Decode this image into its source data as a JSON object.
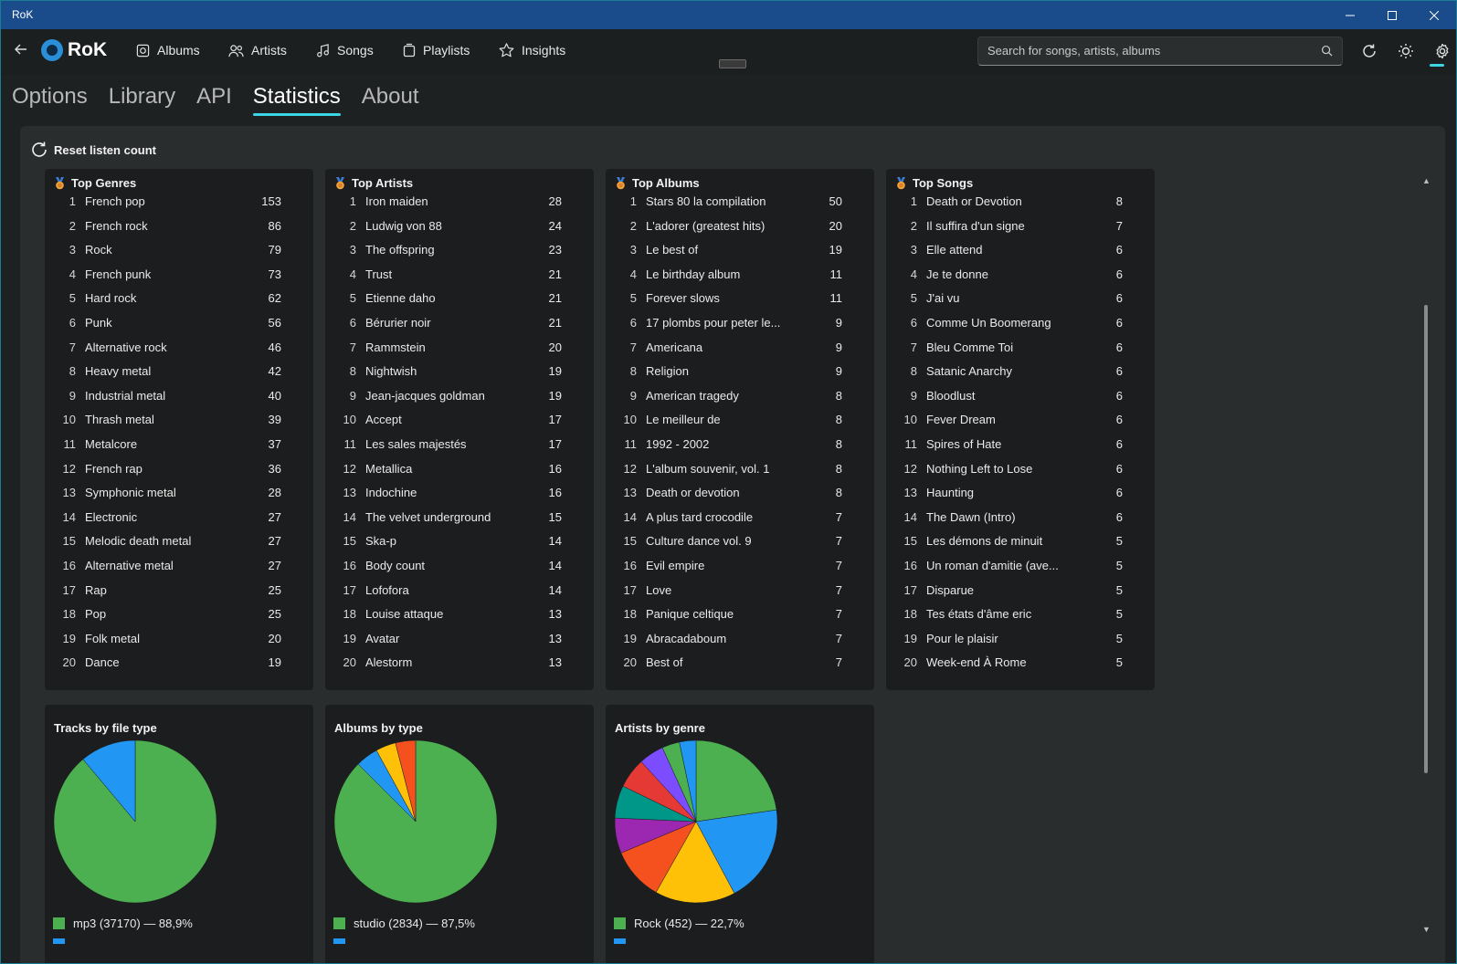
{
  "window": {
    "title": "RoK",
    "controls": [
      "minimize-icon",
      "maximize-icon",
      "close-icon"
    ]
  },
  "nav": {
    "logo_text": "RoK",
    "items": [
      {
        "label": "Albums",
        "icon": "album-icon"
      },
      {
        "label": "Artists",
        "icon": "artists-icon"
      },
      {
        "label": "Songs",
        "icon": "music-note-icon"
      },
      {
        "label": "Playlists",
        "icon": "playlist-icon"
      },
      {
        "label": "Insights",
        "icon": "star-icon"
      }
    ],
    "search_placeholder": "Search for songs, artists, albums"
  },
  "tabs": [
    {
      "label": "Options",
      "active": false
    },
    {
      "label": "Library",
      "active": false
    },
    {
      "label": "API",
      "active": false
    },
    {
      "label": "Statistics",
      "active": true
    },
    {
      "label": "About",
      "active": false
    }
  ],
  "reset_label": "Reset listen count",
  "colors": {
    "accent": "#3ad6e6",
    "titlebar": "#1a4c8c",
    "card": "#1b1d1e",
    "panel": "#2a2d2e"
  },
  "top_lists": [
    {
      "title": "Top Genres",
      "items": [
        {
          "rank": "1",
          "name": "French pop",
          "count": "153"
        },
        {
          "rank": "2",
          "name": "French rock",
          "count": "86"
        },
        {
          "rank": "3",
          "name": "Rock",
          "count": "79"
        },
        {
          "rank": "4",
          "name": "French punk",
          "count": "73"
        },
        {
          "rank": "5",
          "name": "Hard rock",
          "count": "62"
        },
        {
          "rank": "6",
          "name": "Punk",
          "count": "56"
        },
        {
          "rank": "7",
          "name": "Alternative rock",
          "count": "46"
        },
        {
          "rank": "8",
          "name": "Heavy metal",
          "count": "42"
        },
        {
          "rank": "9",
          "name": "Industrial metal",
          "count": "40"
        },
        {
          "rank": "10",
          "name": "Thrash metal",
          "count": "39"
        },
        {
          "rank": "11",
          "name": "Metalcore",
          "count": "37"
        },
        {
          "rank": "12",
          "name": "French rap",
          "count": "36"
        },
        {
          "rank": "13",
          "name": "Symphonic metal",
          "count": "28"
        },
        {
          "rank": "14",
          "name": "Electronic",
          "count": "27"
        },
        {
          "rank": "15",
          "name": "Melodic death metal",
          "count": "27"
        },
        {
          "rank": "16",
          "name": "Alternative metal",
          "count": "27"
        },
        {
          "rank": "17",
          "name": "Rap",
          "count": "25"
        },
        {
          "rank": "18",
          "name": "Pop",
          "count": "25"
        },
        {
          "rank": "19",
          "name": "Folk metal",
          "count": "20"
        },
        {
          "rank": "20",
          "name": "Dance",
          "count": "19"
        }
      ]
    },
    {
      "title": "Top Artists",
      "items": [
        {
          "rank": "1",
          "name": "Iron maiden",
          "count": "28"
        },
        {
          "rank": "2",
          "name": "Ludwig von 88",
          "count": "24"
        },
        {
          "rank": "3",
          "name": "The offspring",
          "count": "23"
        },
        {
          "rank": "4",
          "name": "Trust",
          "count": "21"
        },
        {
          "rank": "5",
          "name": "Etienne daho",
          "count": "21"
        },
        {
          "rank": "6",
          "name": "Bérurier noir",
          "count": "21"
        },
        {
          "rank": "7",
          "name": "Rammstein",
          "count": "20"
        },
        {
          "rank": "8",
          "name": "Nightwish",
          "count": "19"
        },
        {
          "rank": "9",
          "name": "Jean-jacques goldman",
          "count": "19"
        },
        {
          "rank": "10",
          "name": "Accept",
          "count": "17"
        },
        {
          "rank": "11",
          "name": "Les sales majestés",
          "count": "17"
        },
        {
          "rank": "12",
          "name": "Metallica",
          "count": "16"
        },
        {
          "rank": "13",
          "name": "Indochine",
          "count": "16"
        },
        {
          "rank": "14",
          "name": "The velvet underground",
          "count": "15"
        },
        {
          "rank": "15",
          "name": "Ska-p",
          "count": "14"
        },
        {
          "rank": "16",
          "name": "Body count",
          "count": "14"
        },
        {
          "rank": "17",
          "name": "Lofofora",
          "count": "14"
        },
        {
          "rank": "18",
          "name": "Louise attaque",
          "count": "13"
        },
        {
          "rank": "19",
          "name": "Avatar",
          "count": "13"
        },
        {
          "rank": "20",
          "name": "Alestorm",
          "count": "13"
        }
      ]
    },
    {
      "title": "Top Albums",
      "items": [
        {
          "rank": "1",
          "name": "Stars 80 la compilation",
          "count": "50"
        },
        {
          "rank": "2",
          "name": "L'adorer (greatest hits)",
          "count": "20"
        },
        {
          "rank": "3",
          "name": "Le best of",
          "count": "19"
        },
        {
          "rank": "4",
          "name": "Le birthday album",
          "count": "11"
        },
        {
          "rank": "5",
          "name": "Forever slows",
          "count": "11"
        },
        {
          "rank": "6",
          "name": "17 plombs pour peter le...",
          "count": "9"
        },
        {
          "rank": "7",
          "name": "Americana",
          "count": "9"
        },
        {
          "rank": "8",
          "name": "Religion",
          "count": "9"
        },
        {
          "rank": "9",
          "name": "American tragedy",
          "count": "8"
        },
        {
          "rank": "10",
          "name": "Le meilleur de",
          "count": "8"
        },
        {
          "rank": "11",
          "name": "1992 - 2002",
          "count": "8"
        },
        {
          "rank": "12",
          "name": "L'album souvenir, vol. 1",
          "count": "8"
        },
        {
          "rank": "13",
          "name": "Death or devotion",
          "count": "8"
        },
        {
          "rank": "14",
          "name": "A plus tard crocodile",
          "count": "7"
        },
        {
          "rank": "15",
          "name": "Culture dance vol. 9",
          "count": "7"
        },
        {
          "rank": "16",
          "name": "Evil empire",
          "count": "7"
        },
        {
          "rank": "17",
          "name": "Love",
          "count": "7"
        },
        {
          "rank": "18",
          "name": "Panique celtique",
          "count": "7"
        },
        {
          "rank": "19",
          "name": "Abracadaboum",
          "count": "7"
        },
        {
          "rank": "20",
          "name": "Best of",
          "count": "7"
        }
      ]
    },
    {
      "title": "Top Songs",
      "items": [
        {
          "rank": "1",
          "name": "Death or Devotion",
          "count": "8"
        },
        {
          "rank": "2",
          "name": "Il suffira d'un signe",
          "count": "7"
        },
        {
          "rank": "3",
          "name": "Elle attend",
          "count": "6"
        },
        {
          "rank": "4",
          "name": "Je te donne",
          "count": "6"
        },
        {
          "rank": "5",
          "name": "J'ai vu",
          "count": "6"
        },
        {
          "rank": "6",
          "name": "Comme Un Boomerang",
          "count": "6"
        },
        {
          "rank": "7",
          "name": "Bleu Comme Toi",
          "count": "6"
        },
        {
          "rank": "8",
          "name": "Satanic Anarchy",
          "count": "6"
        },
        {
          "rank": "9",
          "name": "Bloodlust",
          "count": "6"
        },
        {
          "rank": "10",
          "name": "Fever Dream",
          "count": "6"
        },
        {
          "rank": "11",
          "name": "Spires of Hate",
          "count": "6"
        },
        {
          "rank": "12",
          "name": "Nothing Left to Lose",
          "count": "6"
        },
        {
          "rank": "13",
          "name": "Haunting",
          "count": "6"
        },
        {
          "rank": "14",
          "name": "The Dawn (Intro)",
          "count": "6"
        },
        {
          "rank": "15",
          "name": "Les démons de minuit",
          "count": "5"
        },
        {
          "rank": "16",
          "name": "Un roman d'amitie (ave...",
          "count": "5"
        },
        {
          "rank": "17",
          "name": "Disparue",
          "count": "5"
        },
        {
          "rank": "18",
          "name": "Tes états d'âme eric",
          "count": "5"
        },
        {
          "rank": "19",
          "name": "Pour le plaisir",
          "count": "5"
        },
        {
          "rank": "20",
          "name": "Week-end À Rome",
          "count": "5"
        }
      ]
    }
  ],
  "chart_data": [
    {
      "type": "pie",
      "title": "Tracks by file type",
      "slices": [
        {
          "label": "mp3 (37170) — 88,9%",
          "value": 88.9,
          "color": "#4caf50"
        },
        {
          "label": "",
          "value": 11.1,
          "color": "#2196f3"
        }
      ]
    },
    {
      "type": "pie",
      "title": "Albums by type",
      "slices": [
        {
          "label": "studio (2834) — 87,5%",
          "value": 87.5,
          "color": "#4caf50"
        },
        {
          "label": "",
          "value": 4.5,
          "color": "#2196f3"
        },
        {
          "label": "",
          "value": 4.0,
          "color": "#ffc107"
        },
        {
          "label": "",
          "value": 4.0,
          "color": "#f4511e"
        }
      ]
    },
    {
      "type": "pie",
      "title": "Artists by genre",
      "slices": [
        {
          "label": "Rock (452) — 22,7%",
          "value": 22.7,
          "color": "#4caf50"
        },
        {
          "label": "",
          "value": 19.5,
          "color": "#2196f3"
        },
        {
          "label": "",
          "value": 16.0,
          "color": "#ffc107"
        },
        {
          "label": "",
          "value": 10.5,
          "color": "#f4511e"
        },
        {
          "label": "",
          "value": 7.0,
          "color": "#9c27b0"
        },
        {
          "label": "",
          "value": 6.5,
          "color": "#009688"
        },
        {
          "label": "",
          "value": 6.0,
          "color": "#e53935"
        },
        {
          "label": "",
          "value": 5.0,
          "color": "#7c4dff"
        },
        {
          "label": "",
          "value": 3.5,
          "color": "#4caf50"
        },
        {
          "label": "",
          "value": 3.3,
          "color": "#2196f3"
        }
      ]
    }
  ]
}
